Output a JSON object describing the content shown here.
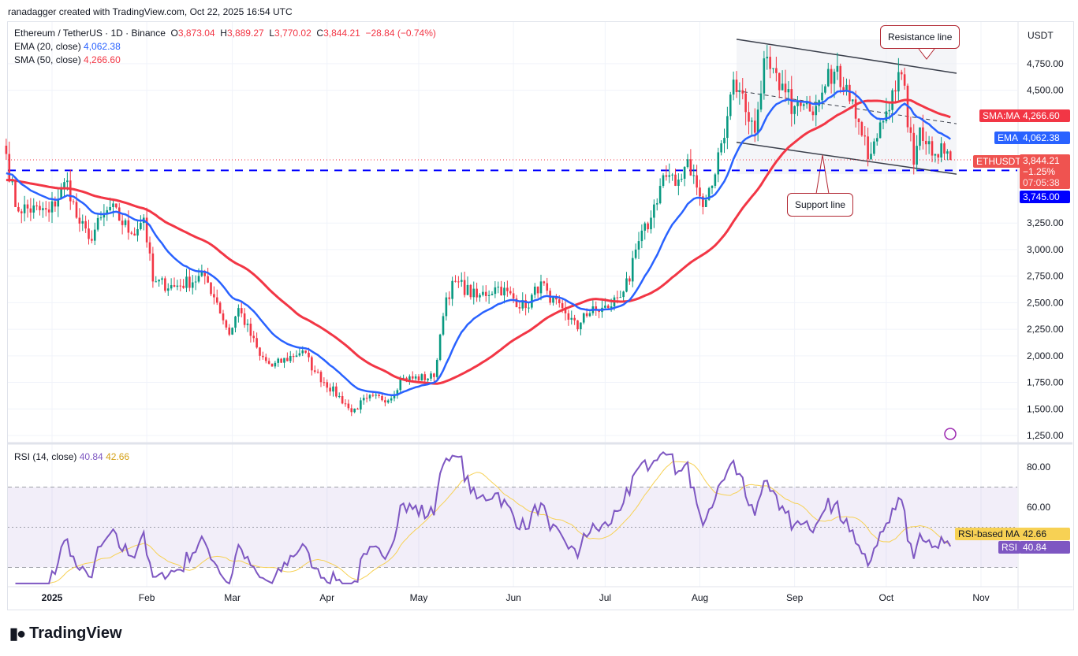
{
  "credit": "ranadagger created with TradingView.com, Oct 22, 2025 16:54 UTC",
  "legend": {
    "symbol": "Ethereum / TetherUS · 1D · Binance",
    "o_label": "O",
    "o": "3,873.04",
    "h_label": "H",
    "h": "3,889.27",
    "l_label": "L",
    "l": "3,770.02",
    "c_label": "C",
    "c": "3,844.21",
    "change": "−28.84 (−0.74%)",
    "ema_label": "EMA (20, close)",
    "ema": "4,062.38",
    "sma_label": "SMA (50, close)",
    "sma": "4,266.60",
    "rsi_label": "RSI (14, close)",
    "rsi": "40.84",
    "rsi_ma": "42.66"
  },
  "axis": {
    "currency": "USDT",
    "price_ticks": [
      4750,
      4500,
      3250,
      3000,
      2750,
      2500,
      2250,
      2000,
      1750,
      1500,
      1250
    ],
    "price_tick_labels": [
      "4,750.00",
      "4,500.00",
      "3,250.00",
      "3,000.00",
      "2,750.00",
      "2,500.00",
      "2,250.00",
      "2,000.00",
      "1,750.00",
      "1,500.00",
      "1,250.00"
    ],
    "rsi_ticks": [
      "80.00",
      "60.00"
    ],
    "time_labels": [
      "2025",
      "Feb",
      "Mar",
      "Apr",
      "May",
      "Jun",
      "Jul",
      "Aug",
      "Sep",
      "Oct",
      "Nov"
    ]
  },
  "tags": {
    "sma_name": "SMA:MA",
    "sma_val": "4,266.60",
    "ema_name": "EMA",
    "ema_val": "4,062.38",
    "sym_name": "ETHUSDT",
    "sym_val": "3,844.21",
    "sym_pct": "−1.25%",
    "sym_timer": "07:05:38",
    "level": "3,745.00",
    "rsi_ma_name": "RSI-based MA",
    "rsi_ma_val": "42.66",
    "rsi_name": "RSI",
    "rsi_val": "40.84"
  },
  "annotations": {
    "resistance": "Resistance line",
    "support": "Support line"
  },
  "colors": {
    "up": "#089981",
    "down": "#f23645",
    "ema": "#2962ff",
    "sma": "#f23645",
    "rsi": "#7e57c2",
    "rsi_ma": "#f7d154",
    "level": "#0000ff"
  },
  "logo": "TradingView",
  "chart_data": {
    "type": "candlestick",
    "symbol": "ETHUSDT",
    "interval": "1D",
    "ylim": [
      1250,
      4900
    ],
    "rsi_ylim": [
      20,
      95
    ],
    "rsi_bands": [
      30,
      50,
      70
    ],
    "support_level": 3745,
    "last_close": 3844.21,
    "close_keypoints": [
      [
        "2024-12-17",
        3900
      ],
      [
        "2024-12-20",
        3400
      ],
      [
        "2024-12-31",
        3350
      ],
      [
        "2025-01-06",
        3650
      ],
      [
        "2025-01-09",
        3300
      ],
      [
        "2025-01-13",
        3100
      ],
      [
        "2025-01-20",
        3400
      ],
      [
        "2025-01-27",
        3150
      ],
      [
        "2025-01-31",
        3300
      ],
      [
        "2025-02-03",
        2700
      ],
      [
        "2025-02-10",
        2650
      ],
      [
        "2025-02-20",
        2750
      ],
      [
        "2025-02-24",
        2500
      ],
      [
        "2025-02-28",
        2200
      ],
      [
        "2025-03-03",
        2450
      ],
      [
        "2025-03-10",
        2000
      ],
      [
        "2025-03-14",
        1900
      ],
      [
        "2025-03-24",
        2050
      ],
      [
        "2025-03-28",
        1850
      ],
      [
        "2025-04-07",
        1550
      ],
      [
        "2025-04-09",
        1470
      ],
      [
        "2025-04-14",
        1600
      ],
      [
        "2025-04-22",
        1600
      ],
      [
        "2025-04-25",
        1780
      ],
      [
        "2025-05-06",
        1800
      ],
      [
        "2025-05-08",
        2200
      ],
      [
        "2025-05-10",
        2550
      ],
      [
        "2025-05-13",
        2700
      ],
      [
        "2025-05-20",
        2550
      ],
      [
        "2025-05-27",
        2650
      ],
      [
        "2025-06-05",
        2450
      ],
      [
        "2025-06-10",
        2700
      ],
      [
        "2025-06-13",
        2500
      ],
      [
        "2025-06-17",
        2450
      ],
      [
        "2025-06-22",
        2250
      ],
      [
        "2025-06-24",
        2400
      ],
      [
        "2025-07-02",
        2450
      ],
      [
        "2025-07-09",
        2700
      ],
      [
        "2025-07-11",
        3000
      ],
      [
        "2025-07-16",
        3300
      ],
      [
        "2025-07-20",
        3700
      ],
      [
        "2025-07-24",
        3600
      ],
      [
        "2025-07-28",
        3850
      ],
      [
        "2025-08-02",
        3400
      ],
      [
        "2025-08-05",
        3600
      ],
      [
        "2025-08-08",
        4000
      ],
      [
        "2025-08-12",
        4600
      ],
      [
        "2025-08-14",
        4500
      ],
      [
        "2025-08-19",
        4100
      ],
      [
        "2025-08-22",
        4800
      ],
      [
        "2025-08-24",
        4700
      ],
      [
        "2025-08-27",
        4500
      ],
      [
        "2025-09-01",
        4350
      ],
      [
        "2025-09-06",
        4300
      ],
      [
        "2025-09-12",
        4700
      ],
      [
        "2025-09-18",
        4550
      ],
      [
        "2025-09-22",
        4200
      ],
      [
        "2025-09-25",
        3850
      ],
      [
        "2025-09-28",
        4050
      ],
      [
        "2025-10-03",
        4500
      ],
      [
        "2025-10-06",
        4650
      ],
      [
        "2025-10-10",
        3800
      ],
      [
        "2025-10-12",
        4150
      ],
      [
        "2025-10-17",
        3900
      ],
      [
        "2025-10-19",
        4000
      ],
      [
        "2025-10-22",
        3844.21
      ]
    ],
    "channel": {
      "resistance": [
        [
          "2025-08-13",
          4980
        ],
        [
          "2025-10-24",
          4660
        ]
      ],
      "support": [
        [
          "2025-08-13",
          4010
        ],
        [
          "2025-10-24",
          3710
        ]
      ]
    }
  }
}
